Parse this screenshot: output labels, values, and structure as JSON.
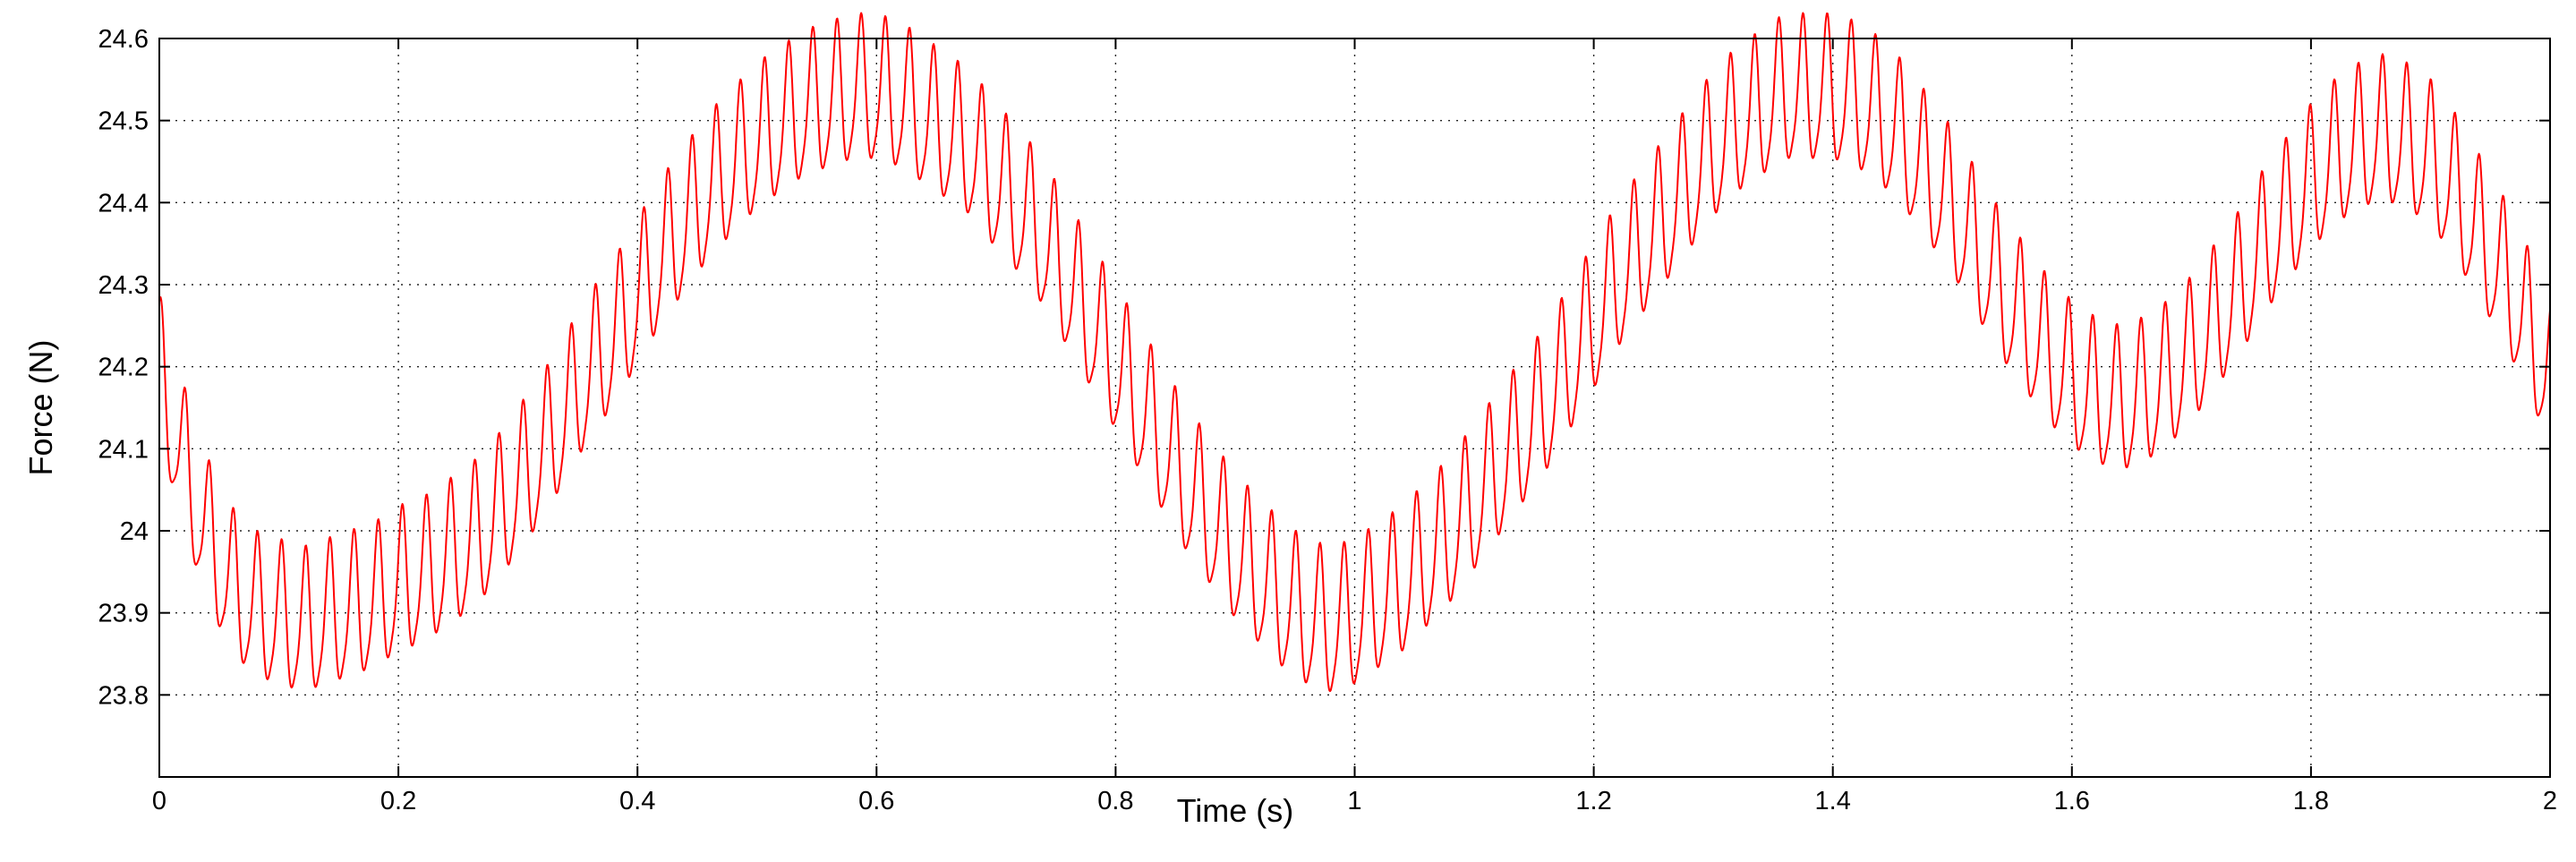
{
  "chart_data": {
    "type": "line",
    "title": "",
    "xlabel": "Time (s)",
    "ylabel": "Force (N)",
    "xlim": [
      0,
      2
    ],
    "ylim": [
      23.7,
      24.6
    ],
    "grid": true,
    "x_ticks": [
      "0",
      "0.2",
      "0.4",
      "0.6",
      "0.8",
      "1",
      "1.2",
      "1.4",
      "1.6",
      "1.8",
      "2"
    ],
    "y_ticks": [
      "23.8",
      "23.9",
      "24",
      "24.1",
      "24.2",
      "24.3",
      "24.4",
      "24.5",
      "24.6"
    ],
    "series": [
      {
        "color": "#ff0000",
        "x": [
          0.0,
          0.02,
          0.04,
          0.06,
          0.08,
          0.1,
          0.12,
          0.14,
          0.16,
          0.18,
          0.2,
          0.22,
          0.24,
          0.26,
          0.28,
          0.3,
          0.32,
          0.34,
          0.36,
          0.38,
          0.4,
          0.42,
          0.44,
          0.46,
          0.48,
          0.5,
          0.52,
          0.54,
          0.56,
          0.58,
          0.6,
          0.62,
          0.64,
          0.66,
          0.68,
          0.7,
          0.72,
          0.74,
          0.76,
          0.78,
          0.8,
          0.82,
          0.84,
          0.86,
          0.88,
          0.9,
          0.92,
          0.94,
          0.96,
          0.98,
          1.0,
          1.02,
          1.04,
          1.06,
          1.08,
          1.1,
          1.12,
          1.14,
          1.16,
          1.18,
          1.2,
          1.22,
          1.24,
          1.26,
          1.28,
          1.3,
          1.32,
          1.34,
          1.36,
          1.38,
          1.4,
          1.42,
          1.44,
          1.46,
          1.48,
          1.5,
          1.52,
          1.54,
          1.56,
          1.58,
          1.6,
          1.62,
          1.64,
          1.66,
          1.68,
          1.7,
          1.72,
          1.74,
          1.76,
          1.78,
          1.8,
          1.82,
          1.84,
          1.86,
          1.88,
          1.9,
          1.92,
          1.94,
          1.96,
          1.98,
          2.0
        ],
        "y": [
          24.19,
          24.08,
          23.99,
          23.93,
          23.9,
          23.89,
          23.88,
          23.89,
          23.9,
          23.91,
          23.93,
          23.94,
          23.96,
          23.98,
          24.01,
          24.05,
          24.09,
          24.14,
          24.19,
          24.23,
          24.28,
          24.33,
          24.37,
          24.41,
          24.44,
          24.47,
          24.49,
          24.51,
          24.52,
          24.53,
          24.53,
          24.52,
          24.5,
          24.48,
          24.46,
          24.42,
          24.39,
          24.35,
          24.3,
          24.25,
          24.2,
          24.15,
          24.1,
          24.05,
          24.01,
          23.97,
          23.94,
          23.91,
          23.89,
          23.88,
          23.89,
          23.91,
          23.93,
          23.96,
          23.99,
          24.03,
          24.07,
          24.11,
          24.15,
          24.2,
          24.25,
          24.3,
          24.34,
          24.38,
          24.42,
          24.46,
          24.49,
          24.51,
          24.53,
          24.53,
          24.53,
          24.52,
          24.5,
          24.47,
          24.43,
          24.39,
          24.34,
          24.29,
          24.25,
          24.21,
          24.18,
          24.16,
          24.15,
          24.16,
          24.18,
          24.21,
          24.25,
          24.29,
          24.34,
          24.38,
          24.42,
          24.45,
          24.47,
          24.48,
          24.47,
          24.45,
          24.41,
          24.36,
          24.31,
          24.25,
          24.18
        ]
      }
    ]
  }
}
